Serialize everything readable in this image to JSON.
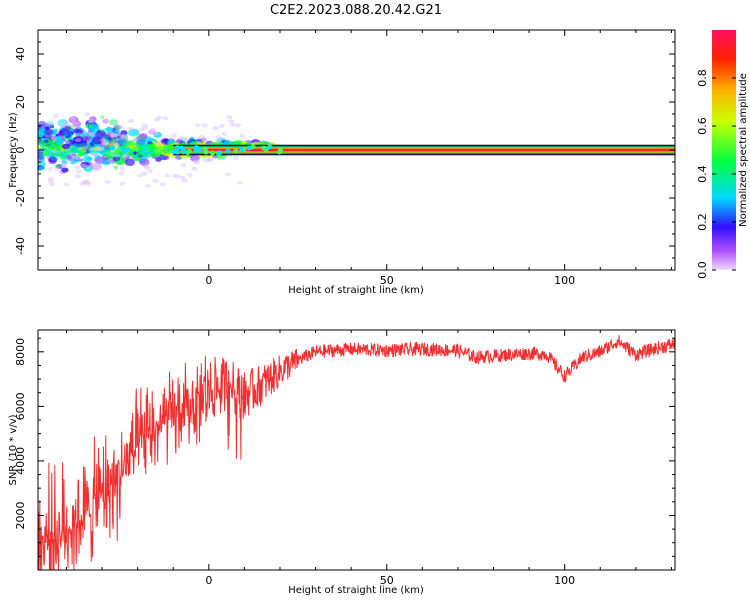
{
  "title": "C2E2.2023.088.20.42.G21",
  "chart_data": [
    {
      "type": "heatmap",
      "xlabel": "Height of straight line (km)",
      "ylabel": "Frequency (Hz)",
      "xlim": [
        -48,
        131
      ],
      "ylim": [
        -50,
        50
      ],
      "xticks": [
        0,
        50,
        100
      ],
      "yticks": [
        -40,
        -20,
        0,
        20,
        40
      ],
      "colorbar": {
        "label": "Normalized spectral amplitude",
        "range": [
          0,
          1
        ],
        "ticks": [
          "0.0",
          "0.2",
          "0.4",
          "0.6",
          "0.8"
        ],
        "colormap": "rainbow (magenta-blue-cyan-green-yellow-red-pink)"
      },
      "description_points": [
        {
          "x": -45,
          "y": 8,
          "amp": 0.3
        },
        {
          "x": -30,
          "y": 5,
          "amp": 0.25
        },
        {
          "x": -20,
          "y": 0,
          "amp": 0.5
        },
        {
          "x": -10,
          "y": 0,
          "amp": 0.6
        },
        {
          "x": 5,
          "y": 0,
          "amp": 0.9
        },
        {
          "x": 50,
          "y": 0,
          "amp": 0.95
        },
        {
          "x": 100,
          "y": 0,
          "amp": 0.95
        },
        {
          "x": 130,
          "y": 0,
          "amp": 0.95
        }
      ]
    },
    {
      "type": "line",
      "xlabel": "Height of straight line (km)",
      "ylabel": "SNR (10 * v/v)",
      "xlim": [
        -48,
        131
      ],
      "ylim": [
        0,
        8800
      ],
      "xticks": [
        0,
        50,
        100
      ],
      "yticks": [
        2000,
        4000,
        6000,
        8000
      ],
      "series": [
        {
          "color": "#ee3030",
          "x": [
            -48,
            -40,
            -35,
            -30,
            -25,
            -20,
            -15,
            -10,
            -5,
            0,
            5,
            10,
            15,
            20,
            25,
            30,
            40,
            50,
            60,
            70,
            75,
            80,
            85,
            90,
            95,
            100,
            105,
            110,
            115,
            120,
            125,
            131
          ],
          "y": [
            1000,
            1500,
            2000,
            2800,
            3500,
            4500,
            5200,
            5600,
            6000,
            6600,
            6800,
            6400,
            6800,
            7300,
            7700,
            8000,
            8100,
            8050,
            8100,
            8050,
            7800,
            7850,
            7900,
            7950,
            7900,
            7100,
            7800,
            8000,
            8400,
            7900,
            8100,
            8300
          ]
        }
      ]
    }
  ]
}
